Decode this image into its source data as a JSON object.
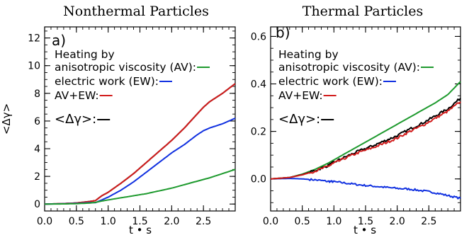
{
  "chart_data": [
    {
      "type": "line",
      "panel_label": "a)",
      "title": "Nonthermal Particles",
      "xlabel": "t • s",
      "ylabel": "<Δγ>",
      "xlim": [
        0,
        3.0
      ],
      "ylim": [
        -0.5,
        12.8
      ],
      "xticks": [
        0.0,
        0.5,
        1.0,
        1.5,
        2.0,
        2.5
      ],
      "xtick_labels": [
        "0.0",
        "0.5",
        "1.0",
        "1.5",
        "2.0",
        "2.5"
      ],
      "yticks": [
        0,
        2,
        4,
        6,
        8,
        10,
        12
      ],
      "ytick_labels": [
        "0",
        "2",
        "4",
        "6",
        "8",
        "10",
        "12"
      ],
      "legend_placement": "upper-left",
      "legend": [
        {
          "lines": [
            "Heating by",
            "anisotropic viscosity (AV):"
          ],
          "color": "#1e9a2e"
        },
        {
          "lines": [
            "electric work (EW):"
          ],
          "color": "#1030e0"
        },
        {
          "lines": [
            "AV+EW:"
          ],
          "color": "#d21c1c"
        },
        {
          "lines": [
            "<Δγ>:"
          ],
          "color": "#000000"
        }
      ],
      "series": [
        {
          "color": "#000000",
          "x": [
            0,
            0.3,
            0.5,
            0.7,
            0.8,
            0.9,
            1.0,
            1.2,
            1.4,
            1.6,
            1.8,
            2.0,
            2.2,
            2.4,
            2.5,
            2.6,
            2.8,
            3.0
          ],
          "y": [
            0,
            0.03,
            0.08,
            0.18,
            0.25,
            0.6,
            0.85,
            1.5,
            2.2,
            3.0,
            3.8,
            4.6,
            5.5,
            6.5,
            7.0,
            7.4,
            8.0,
            8.7
          ]
        },
        {
          "color": "#d21c1c",
          "x": [
            0,
            0.3,
            0.5,
            0.7,
            0.8,
            0.9,
            1.0,
            1.2,
            1.4,
            1.6,
            1.8,
            2.0,
            2.2,
            2.4,
            2.5,
            2.6,
            2.8,
            3.0
          ],
          "y": [
            0,
            0.03,
            0.08,
            0.18,
            0.25,
            0.6,
            0.85,
            1.5,
            2.2,
            3.0,
            3.8,
            4.6,
            5.5,
            6.5,
            7.0,
            7.4,
            8.0,
            8.7
          ]
        },
        {
          "color": "#1030e0",
          "x": [
            0,
            0.3,
            0.5,
            0.7,
            0.8,
            0.9,
            1.0,
            1.2,
            1.4,
            1.6,
            1.8,
            2.0,
            2.2,
            2.4,
            2.5,
            2.6,
            2.8,
            3.0
          ],
          "y": [
            0,
            0.02,
            0.05,
            0.1,
            0.1,
            0.3,
            0.5,
            1.0,
            1.6,
            2.3,
            3.0,
            3.7,
            4.3,
            5.0,
            5.3,
            5.5,
            5.8,
            6.2
          ]
        },
        {
          "color": "#1e9a2e",
          "x": [
            0,
            0.3,
            0.5,
            0.7,
            0.8,
            0.9,
            1.0,
            1.2,
            1.4,
            1.6,
            1.8,
            2.0,
            2.2,
            2.4,
            2.6,
            2.8,
            3.0
          ],
          "y": [
            0,
            0.01,
            0.03,
            0.07,
            0.12,
            0.22,
            0.3,
            0.45,
            0.6,
            0.75,
            0.95,
            1.15,
            1.4,
            1.65,
            1.9,
            2.2,
            2.5
          ]
        }
      ]
    },
    {
      "type": "line",
      "panel_label": "b)",
      "title": "Thermal Particles",
      "xlabel": "t • s",
      "ylabel": "",
      "xlim": [
        0,
        3.0
      ],
      "ylim": [
        -0.135,
        0.64
      ],
      "xticks": [
        0.0,
        0.5,
        1.0,
        1.5,
        2.0,
        2.5
      ],
      "xtick_labels": [
        "0.0",
        "0.5",
        "1.0",
        "1.5",
        "2.0",
        "2.5"
      ],
      "yticks": [
        0.0,
        0.2,
        0.4,
        0.6
      ],
      "ytick_labels": [
        "0.0",
        "0.2",
        "0.4",
        "0.6"
      ],
      "legend_placement": "upper-left",
      "legend": [
        {
          "lines": [
            "Heating by",
            "anisotropic viscosity (AV):"
          ],
          "color": "#1e9a2e"
        },
        {
          "lines": [
            "electric work (EW):"
          ],
          "color": "#1030e0"
        },
        {
          "lines": [
            "AV+EW:"
          ],
          "color": "#d21c1c"
        },
        {
          "lines": [
            "<Δγ>:"
          ],
          "color": "#000000"
        }
      ],
      "series": [
        {
          "color": "#1030e0",
          "x": [
            0,
            0.3,
            0.5,
            0.7,
            0.9,
            1.0,
            1.2,
            1.4,
            1.6,
            1.8,
            2.0,
            2.2,
            2.4,
            2.6,
            2.8,
            3.0
          ],
          "y": [
            0,
            0.002,
            0.0,
            -0.004,
            -0.01,
            -0.012,
            -0.018,
            -0.025,
            -0.03,
            -0.035,
            -0.04,
            -0.043,
            -0.05,
            -0.058,
            -0.07,
            -0.082
          ],
          "jitter": 0.004
        },
        {
          "color": "#1e9a2e",
          "x": [
            0,
            0.3,
            0.5,
            0.7,
            0.9,
            1.0,
            1.2,
            1.4,
            1.6,
            1.8,
            2.0,
            2.2,
            2.4,
            2.6,
            2.8,
            3.0
          ],
          "y": [
            0,
            0.006,
            0.02,
            0.04,
            0.065,
            0.08,
            0.11,
            0.14,
            0.17,
            0.2,
            0.23,
            0.26,
            0.29,
            0.32,
            0.355,
            0.41
          ]
        },
        {
          "color": "#000000",
          "x": [
            0,
            0.3,
            0.5,
            0.7,
            0.9,
            1.0,
            1.2,
            1.4,
            1.6,
            1.8,
            2.0,
            2.2,
            2.4,
            2.6,
            2.8,
            3.0
          ],
          "y": [
            0,
            0.006,
            0.018,
            0.035,
            0.055,
            0.07,
            0.095,
            0.118,
            0.138,
            0.16,
            0.182,
            0.21,
            0.235,
            0.265,
            0.295,
            0.34
          ],
          "jitter": 0.005
        },
        {
          "color": "#d21c1c",
          "x": [
            0,
            0.3,
            0.5,
            0.7,
            0.9,
            1.0,
            1.2,
            1.4,
            1.6,
            1.8,
            2.0,
            2.2,
            2.4,
            2.6,
            2.8,
            3.0
          ],
          "y": [
            0,
            0.006,
            0.017,
            0.033,
            0.052,
            0.066,
            0.09,
            0.112,
            0.13,
            0.15,
            0.172,
            0.2,
            0.225,
            0.255,
            0.285,
            0.325
          ],
          "jitter": 0.005
        }
      ]
    }
  ]
}
